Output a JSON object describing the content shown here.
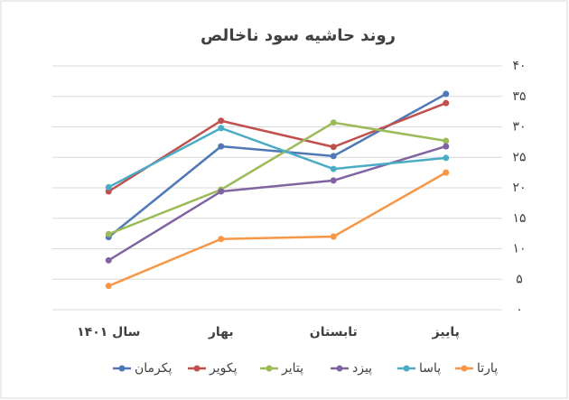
{
  "chart_data": {
    "type": "line",
    "title": "روند حاشیه سود ناخالص",
    "categories": [
      "سال ۱۴۰۱",
      "بهار",
      "تابستان",
      "پاییز"
    ],
    "ylim": [
      0,
      40
    ],
    "yticks": [
      {
        "value": 0,
        "label": "۰"
      },
      {
        "value": 5,
        "label": "۵"
      },
      {
        "value": 10,
        "label": "۱۰"
      },
      {
        "value": 15,
        "label": "۱۵"
      },
      {
        "value": 20,
        "label": "۲۰"
      },
      {
        "value": 25,
        "label": "۲۵"
      },
      {
        "value": 30,
        "label": "۳۰"
      },
      {
        "value": 35,
        "label": "۳۵"
      },
      {
        "value": 40,
        "label": "۴۰"
      }
    ],
    "grid": true,
    "legend": "bottom",
    "series": [
      {
        "name": "پکرمان",
        "color": "#4e79b5",
        "values": [
          11.9,
          26.8,
          25.2,
          35.4
        ]
      },
      {
        "name": "پکویر",
        "color": "#c0504d",
        "values": [
          19.4,
          31,
          26.7,
          33.9
        ]
      },
      {
        "name": "پتایر",
        "color": "#9bbb59",
        "values": [
          12.4,
          19.7,
          30.7,
          27.7
        ]
      },
      {
        "name": "پیزد",
        "color": "#8064a2",
        "values": [
          8.1,
          19.4,
          21.2,
          26.8
        ]
      },
      {
        "name": "پاسا",
        "color": "#4bacc6",
        "values": [
          20.1,
          29.8,
          23.1,
          24.9
        ]
      },
      {
        "name": "پارتا",
        "color": "#f79646",
        "values": [
          3.9,
          11.6,
          12,
          22.5
        ]
      }
    ]
  }
}
